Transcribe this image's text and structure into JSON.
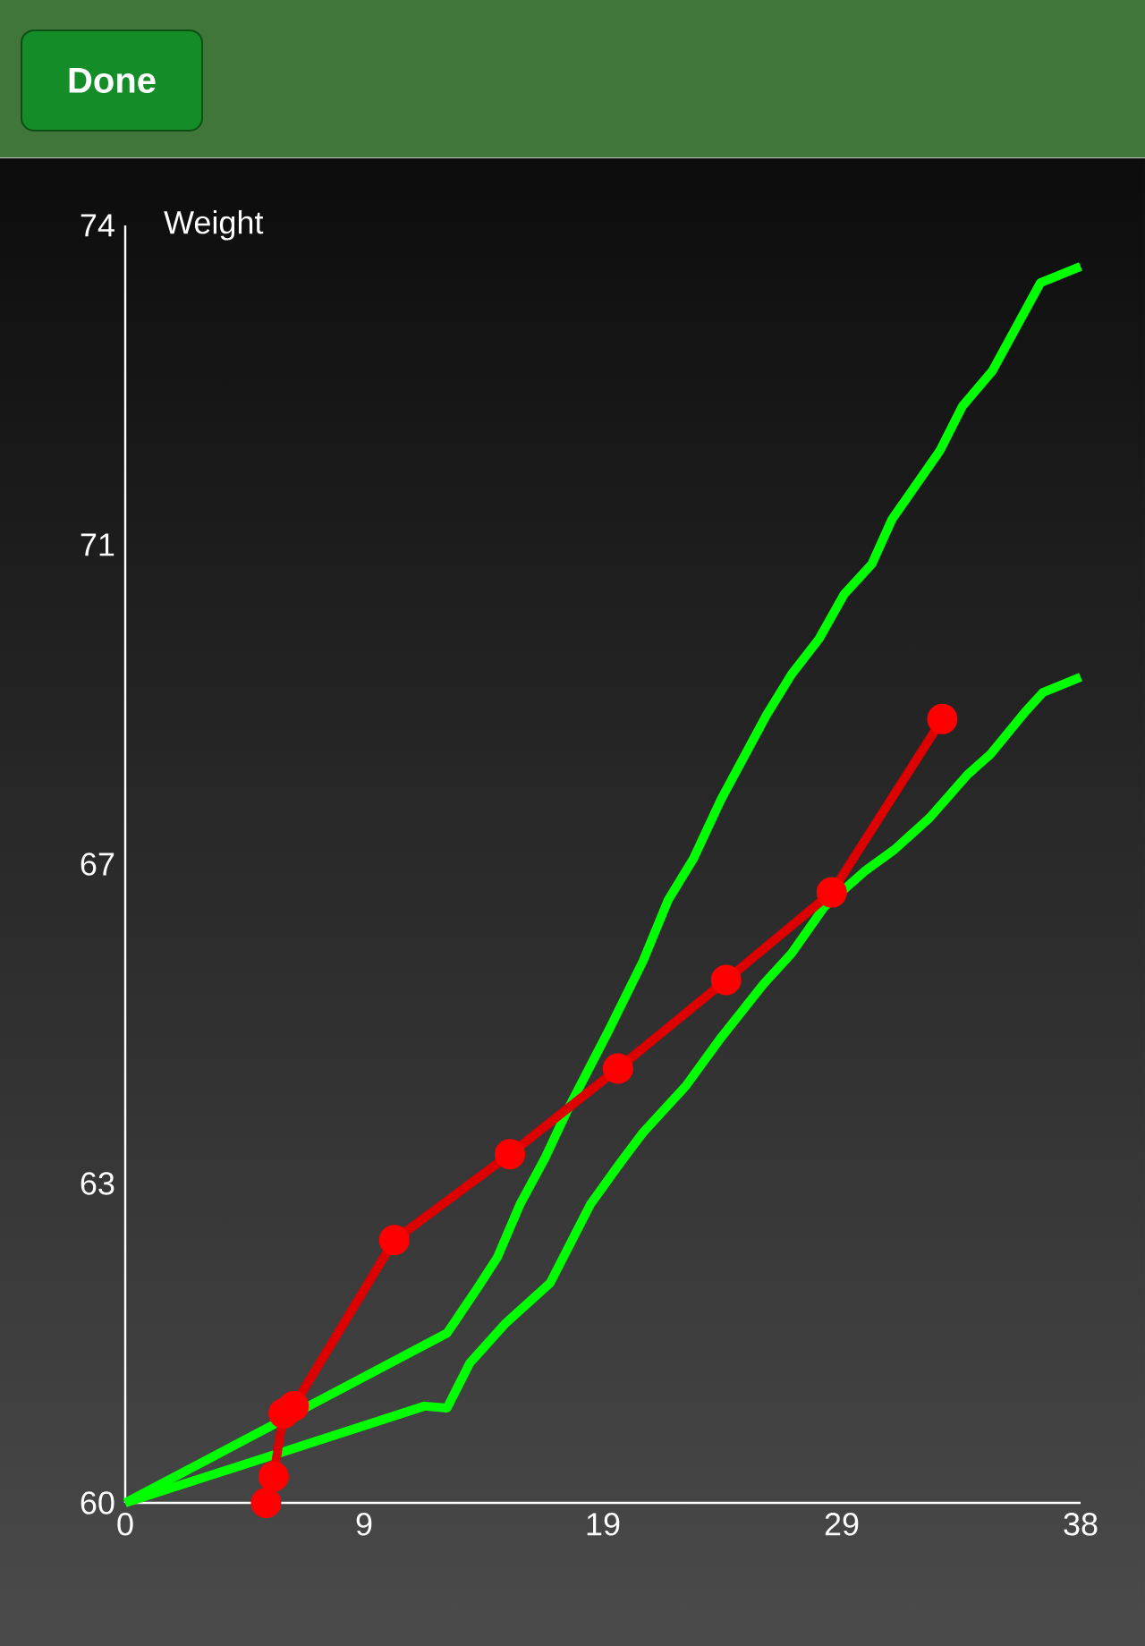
{
  "chart_data": {
    "type": "line",
    "ylabel": "Weight",
    "annotations": [
      "Done"
    ],
    "xlim": [
      0,
      38
    ],
    "ylim": [
      60,
      74
    ],
    "xticks": [
      0,
      {
        "value": 9.5,
        "label": "9"
      },
      19,
      {
        "value": 28.5,
        "label": "29"
      },
      38
    ],
    "yticks": [
      60,
      {
        "value": 63.5,
        "label": "63"
      },
      67,
      {
        "value": 70.5,
        "label": "71"
      },
      74
    ],
    "series": [
      {
        "color": "#00ff00",
        "marker": "none",
        "x": [
          0,
          12.8,
          14.0,
          14.8,
          15.7,
          16.7,
          17.6,
          19.2,
          20.6,
          21.6,
          22.6,
          23.7,
          25.5,
          26.5,
          27.6,
          28.6,
          29.7,
          30.5,
          32.4,
          33.3,
          34.5,
          36.4,
          38
        ],
        "values": [
          60,
          61.86,
          62.35,
          62.69,
          63.27,
          63.78,
          64.31,
          65.16,
          65.94,
          66.61,
          67.06,
          67.71,
          68.63,
          69.08,
          69.47,
          69.96,
          70.29,
          70.78,
          71.53,
          72.02,
          72.41,
          73.37,
          73.55
        ]
      },
      {
        "color": "#00ff00",
        "marker": "none",
        "x": [
          0,
          11.9,
          12.8,
          13.7,
          15.1,
          16.9,
          18.5,
          19.7,
          20.6,
          22.3,
          23.7,
          25.4,
          26.5,
          27.8,
          29.4,
          30.6,
          32.0,
          33.5,
          34.4,
          35.8,
          36.5,
          38
        ],
        "values": [
          60,
          61.06,
          61.04,
          61.53,
          61.96,
          62.41,
          63.27,
          63.73,
          64.06,
          64.57,
          65.1,
          65.69,
          66.02,
          66.53,
          66.92,
          67.16,
          67.51,
          67.98,
          68.2,
          68.67,
          68.88,
          69.05
        ]
      },
      {
        "color": "#dd0000",
        "marker": "circle",
        "x": [
          5.6,
          5.9,
          6.3,
          6.7,
          10.7,
          15.3,
          19.6,
          23.9,
          28.1,
          32.5
        ],
        "values": [
          60.0,
          60.29,
          60.98,
          61.06,
          62.88,
          63.82,
          64.76,
          65.73,
          66.69,
          68.59
        ]
      }
    ]
  }
}
